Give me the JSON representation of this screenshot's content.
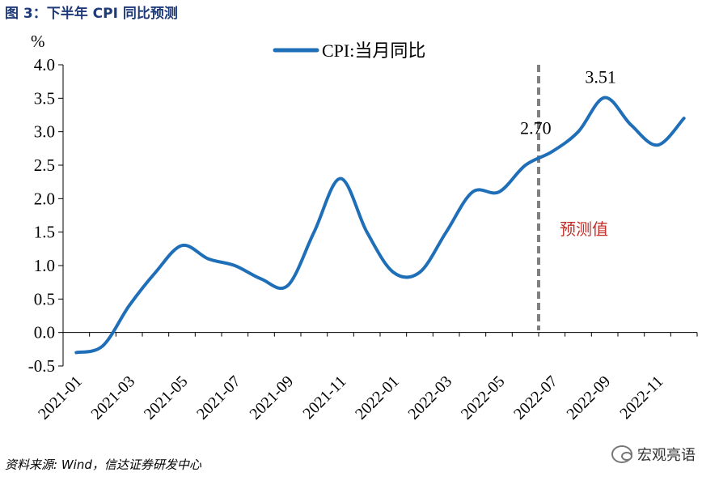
{
  "figure": {
    "title": "图 3：下半年 CPI 同比预测",
    "source": "资料来源: Wind，信达证券研发中心",
    "watermark": "宏观亮语"
  },
  "colors": {
    "line": "#1f6fb8",
    "divider": "#808080",
    "forecast_text": "#c0302b",
    "title": "#1f3a78"
  },
  "chart_data": {
    "type": "line",
    "title": "下半年 CPI 同比预测",
    "ylabel": "%",
    "xlabel": "",
    "ylim": [
      -0.5,
      4.0
    ],
    "yticks": [
      "-0.5",
      "0.0",
      "0.5",
      "1.0",
      "1.5",
      "2.0",
      "2.5",
      "3.0",
      "3.5",
      "4.0"
    ],
    "x_tick_labels": [
      "2021-01",
      "2021-03",
      "2021-05",
      "2021-07",
      "2021-09",
      "2021-11",
      "2022-01",
      "2022-03",
      "2022-05",
      "2022-07",
      "2022-09",
      "2022-11"
    ],
    "x": [
      "2021-01",
      "2021-02",
      "2021-03",
      "2021-04",
      "2021-05",
      "2021-06",
      "2021-07",
      "2021-08",
      "2021-09",
      "2021-10",
      "2021-11",
      "2021-12",
      "2022-01",
      "2022-02",
      "2022-03",
      "2022-04",
      "2022-05",
      "2022-06",
      "2022-07",
      "2022-08",
      "2022-09",
      "2022-10",
      "2022-11",
      "2022-12"
    ],
    "series": [
      {
        "name": "CPI:当月同比",
        "values": [
          -0.3,
          -0.2,
          0.4,
          0.9,
          1.3,
          1.1,
          1.0,
          0.8,
          0.7,
          1.5,
          2.3,
          1.5,
          0.9,
          0.9,
          1.5,
          2.1,
          2.1,
          2.5,
          2.7,
          3.0,
          3.51,
          3.1,
          2.8,
          3.2
        ]
      }
    ],
    "legend": "top-center",
    "annotations": [
      {
        "text": "2.70",
        "x": "2022-07",
        "value": 2.7
      },
      {
        "text": "3.51",
        "x": "2022-09",
        "value": 3.51
      },
      {
        "text": "预测值",
        "note": "forecast region"
      }
    ],
    "forecast_divider_after": "2022-06"
  }
}
